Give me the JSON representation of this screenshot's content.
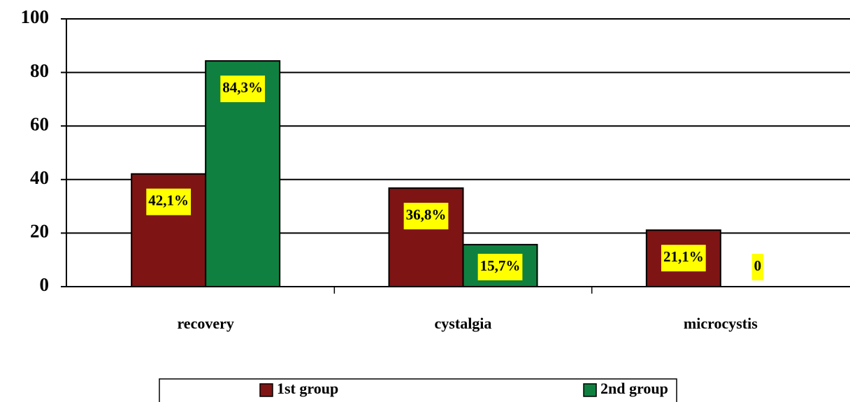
{
  "chart_data": {
    "type": "bar",
    "categories": [
      "recovery",
      "cystalgia",
      "microcystis"
    ],
    "series": [
      {
        "name": "1st group",
        "color": "#7f1414",
        "values": [
          42.1,
          36.8,
          21.1
        ],
        "value_labels": [
          "42,1%",
          "36,8%",
          "21,1%"
        ]
      },
      {
        "name": "2nd group",
        "color": "#108040",
        "values": [
          84.3,
          15.7,
          0
        ],
        "value_labels": [
          "84,3%",
          "15,7%",
          "0"
        ]
      }
    ],
    "ylim": [
      0,
      100
    ],
    "yticks": [
      0,
      20,
      40,
      60,
      80,
      100
    ],
    "grid": true,
    "legend": "bottom"
  }
}
